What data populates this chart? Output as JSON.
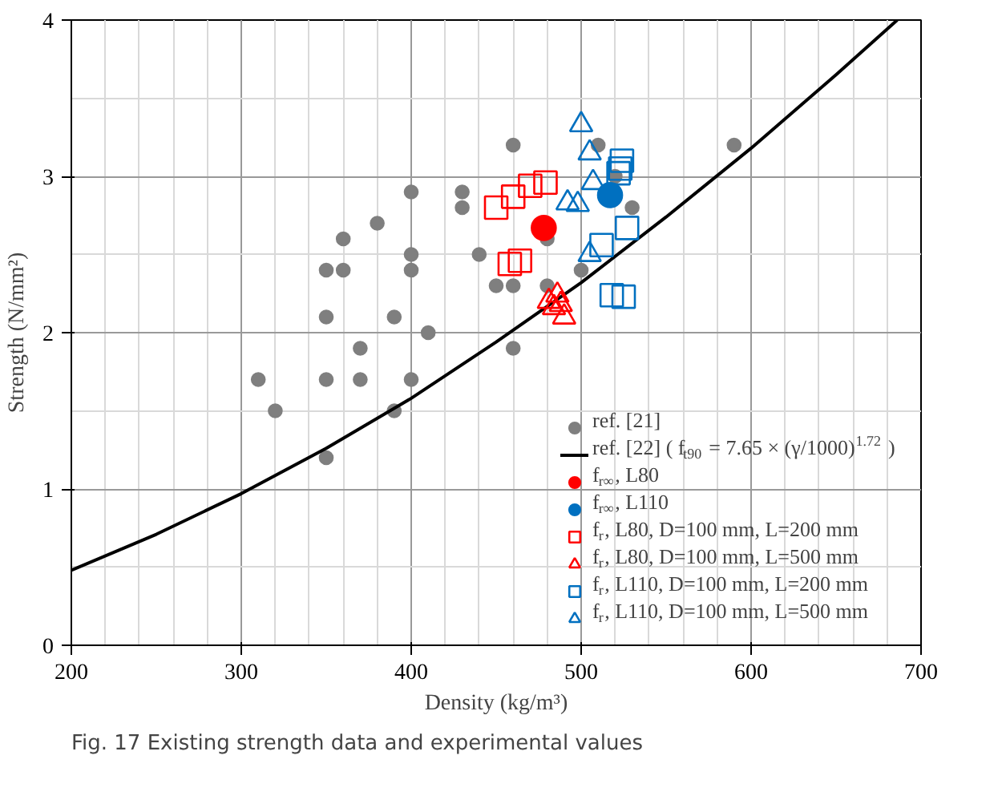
{
  "chart_data": {
    "type": "scatter",
    "title": "Fig. 17 Existing strength data and experimental values",
    "xlabel": "Density (kg/m³)",
    "ylabel": "Strength (N/mm²)",
    "xlim": [
      200,
      700
    ],
    "ylim": [
      0,
      4
    ],
    "xticks": [
      200,
      300,
      400,
      500,
      600,
      700
    ],
    "yticks": [
      0,
      1,
      2,
      3,
      4
    ],
    "grid": true,
    "legend": "bottom right",
    "series": [
      {
        "name": "ref. [21]",
        "color": "#7f7f7f",
        "marker": "circle",
        "x": [
          310,
          320,
          350,
          350,
          350,
          350,
          360,
          360,
          370,
          370,
          380,
          390,
          390,
          400,
          400,
          400,
          400,
          410,
          430,
          430,
          440,
          450,
          460,
          460,
          460,
          480,
          480,
          500,
          510,
          520,
          530,
          590
        ],
        "values": [
          1.7,
          1.5,
          1.2,
          1.7,
          2.1,
          2.4,
          2.4,
          2.6,
          1.7,
          1.9,
          2.7,
          1.5,
          2.1,
          1.7,
          2.4,
          2.5,
          2.9,
          2.0,
          2.8,
          2.9,
          2.5,
          2.3,
          1.9,
          2.3,
          3.2,
          2.3,
          2.6,
          2.4,
          3.2,
          3.0,
          2.8,
          3.2
        ]
      },
      {
        "name": "ref. [22] ( f$_{t90}$ = 7.65 × (γ/1000)$^{1.72}$ )",
        "type": "line",
        "color": "#000000",
        "marker": "none",
        "line_style": "solid",
        "x": [
          200,
          250,
          300,
          350,
          400,
          450,
          500,
          550,
          600,
          650,
          686
        ],
        "values": [
          0.48,
          0.71,
          0.97,
          1.26,
          1.58,
          1.94,
          2.32,
          2.74,
          3.18,
          3.65,
          4.0
        ]
      },
      {
        "name": "f$_{r∞}$, L80",
        "color": "#ff0000",
        "marker": "circle",
        "x": [
          478
        ],
        "values": [
          2.67
        ]
      },
      {
        "name": "f$_{r∞}$, L110",
        "color": "#0070c0",
        "marker": "circle",
        "x": [
          517
        ],
        "values": [
          2.88
        ]
      },
      {
        "name": "f$_{r}$, L80, D=100 mm, L=200 mm",
        "color": "#ff0000",
        "marker": "square",
        "x": [
          450,
          460,
          470,
          479,
          458,
          464
        ],
        "values": [
          2.8,
          2.87,
          2.94,
          2.96,
          2.44,
          2.46
        ]
      },
      {
        "name": "f$_{r}$, L80, D=100 mm, L=500 mm",
        "color": "#ff0000",
        "marker": "triangle",
        "x": [
          481,
          484,
          486,
          488,
          490
        ],
        "values": [
          2.2,
          2.16,
          2.24,
          2.18,
          2.1
        ]
      },
      {
        "name": "f$_{r}$, L110, D=100 mm, L=200 mm",
        "color": "#0070c0",
        "marker": "square",
        "x": [
          524,
          523,
          522,
          527,
          512,
          518,
          525
        ],
        "values": [
          3.1,
          3.05,
          3.02,
          2.67,
          2.56,
          2.24,
          2.23
        ]
      },
      {
        "name": "f$_{r}$, L110, D=100 mm, L=500 mm",
        "color": "#0070c0",
        "marker": "triangle",
        "x": [
          500,
          505,
          507,
          492,
          498,
          505
        ],
        "values": [
          3.33,
          3.15,
          2.96,
          2.83,
          2.82,
          2.5
        ]
      }
    ]
  }
}
